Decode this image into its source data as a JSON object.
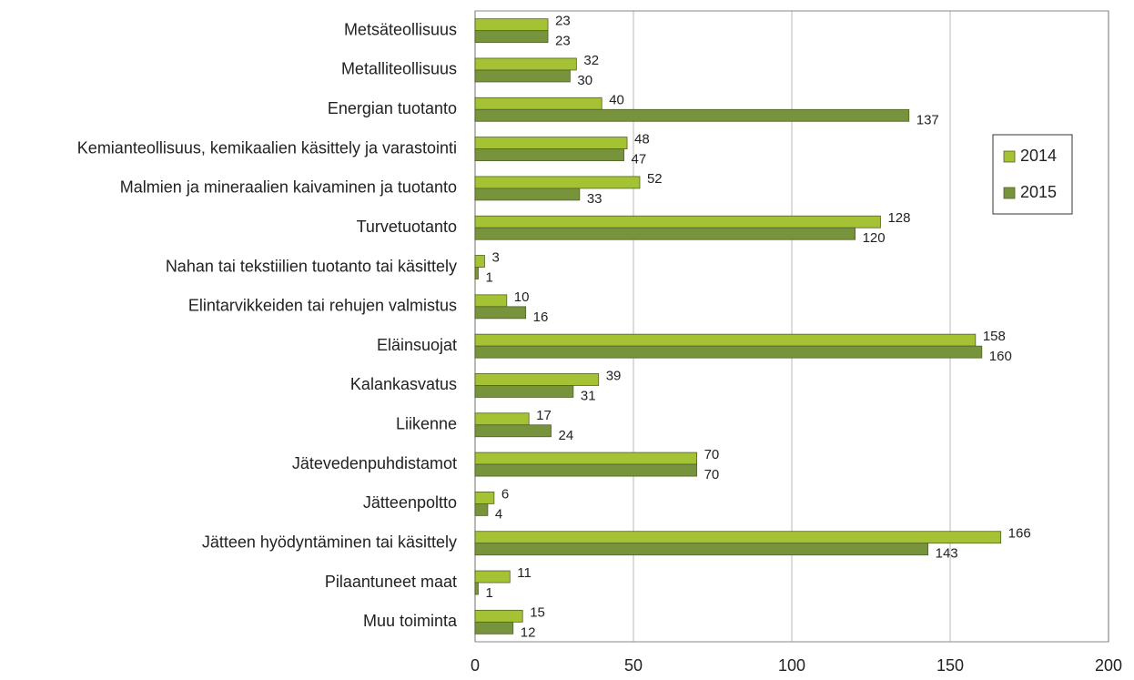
{
  "chart_data": {
    "type": "hbar",
    "categories": [
      "Metsäteollisuus",
      "Metalliteollisuus",
      "Energian tuotanto",
      "Kemianteollisuus, kemikaalien käsittely ja varastointi",
      "Malmien ja mineraalien kaivaminen ja tuotanto",
      "Turvetuotanto",
      "Nahan tai tekstiilien tuotanto tai käsittely",
      "Elintarvikkeiden tai rehujen valmistus",
      "Eläinsuojat",
      "Kalankasvatus",
      "Liikenne",
      "Jätevedenpuhdistamot",
      "Jätteenpoltto",
      "Jätteen hyödyntäminen tai käsittely",
      "Pilaantuneet maat",
      "Muu toiminta"
    ],
    "series": [
      {
        "name": "2014",
        "color": "#a4c234",
        "values": [
          23,
          32,
          40,
          48,
          52,
          128,
          3,
          10,
          158,
          39,
          17,
          70,
          6,
          166,
          11,
          15
        ]
      },
      {
        "name": "2015",
        "color": "#77933c",
        "values": [
          23,
          30,
          137,
          47,
          33,
          120,
          1,
          16,
          160,
          31,
          24,
          70,
          4,
          143,
          1,
          12
        ]
      }
    ],
    "xlim": [
      0,
      200
    ],
    "xticks": [
      0,
      50,
      100,
      150,
      200
    ],
    "grid": true,
    "legend": "right"
  }
}
